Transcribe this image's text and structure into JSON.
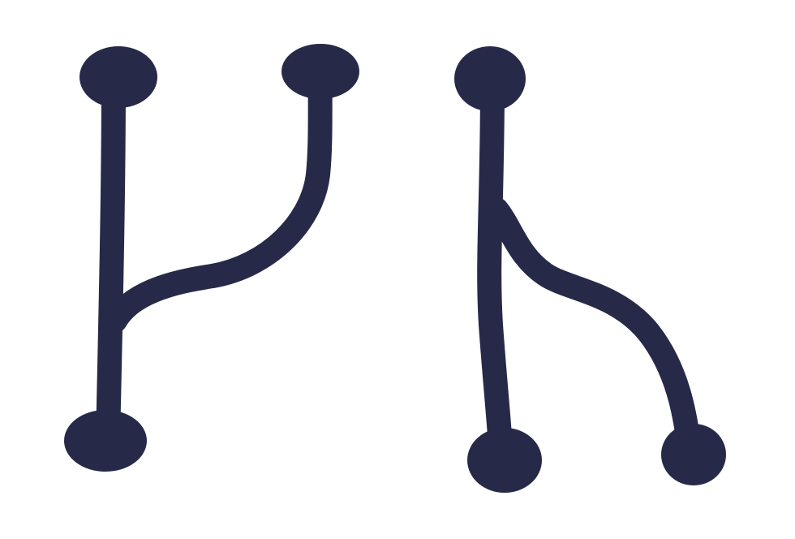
{
  "diagram": {
    "stroke_color": "#262a48",
    "background_color": "#ffffff",
    "icons": [
      {
        "name": "merge-icon",
        "description_visible": false
      },
      {
        "name": "split-icon",
        "description_visible": false
      }
    ]
  }
}
